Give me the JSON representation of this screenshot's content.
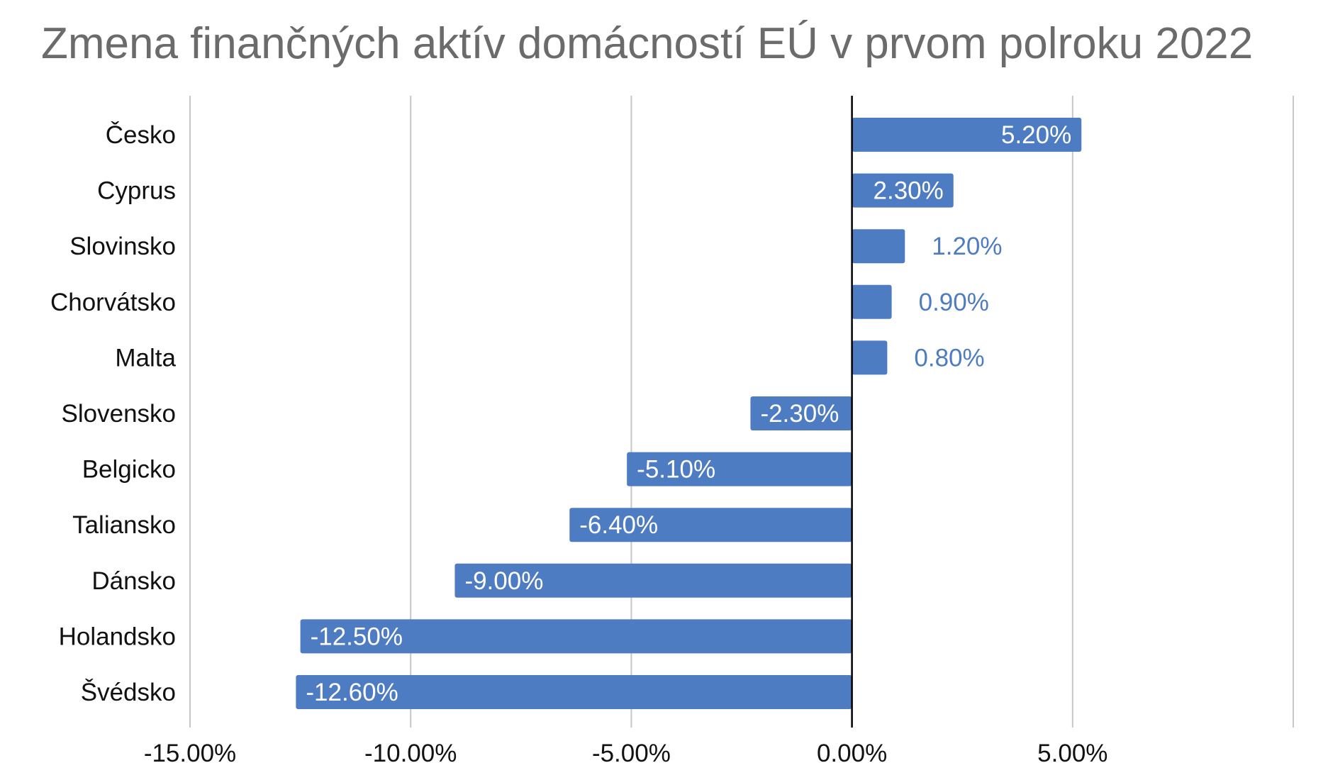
{
  "chart_data": {
    "type": "bar",
    "orientation": "horizontal",
    "title": "Zmena finančných aktív domácností EÚ v prvom polroku 2022",
    "categories": [
      "Česko",
      "Cyprus",
      "Slovinsko",
      "Chorvátsko",
      "Malta",
      "Slovensko",
      "Belgicko",
      "Taliansko",
      "Dánsko",
      "Holandsko",
      "Švédsko"
    ],
    "values": [
      5.2,
      2.3,
      1.2,
      0.9,
      0.8,
      -2.3,
      -5.1,
      -6.4,
      -9.0,
      -12.5,
      -12.6
    ],
    "value_labels": [
      "5.20%",
      "2.30%",
      "1.20%",
      "0.90%",
      "0.80%",
      "-2.30%",
      "-5.10%",
      "-6.40%",
      "-9.00%",
      "-12.50%",
      "-12.60%"
    ],
    "xlim": [
      -15,
      10
    ],
    "xticks": [
      -15,
      -10,
      -5,
      0,
      5,
      10
    ],
    "xtick_labels": [
      "-15.00%",
      "-10.00%",
      "-5.00%",
      "0.00%",
      "5.00%",
      ""
    ],
    "xlabel": "",
    "ylabel": "",
    "grid": "vertical",
    "legend": "none",
    "colors": {
      "bar": "#4e7cc2",
      "label_inside": "#ffffff",
      "label_outside": "#4e7cc2",
      "grid": "#c6c6c6",
      "zero_line": "#000000",
      "title": "#6b6b6b",
      "text": "#111111"
    }
  }
}
